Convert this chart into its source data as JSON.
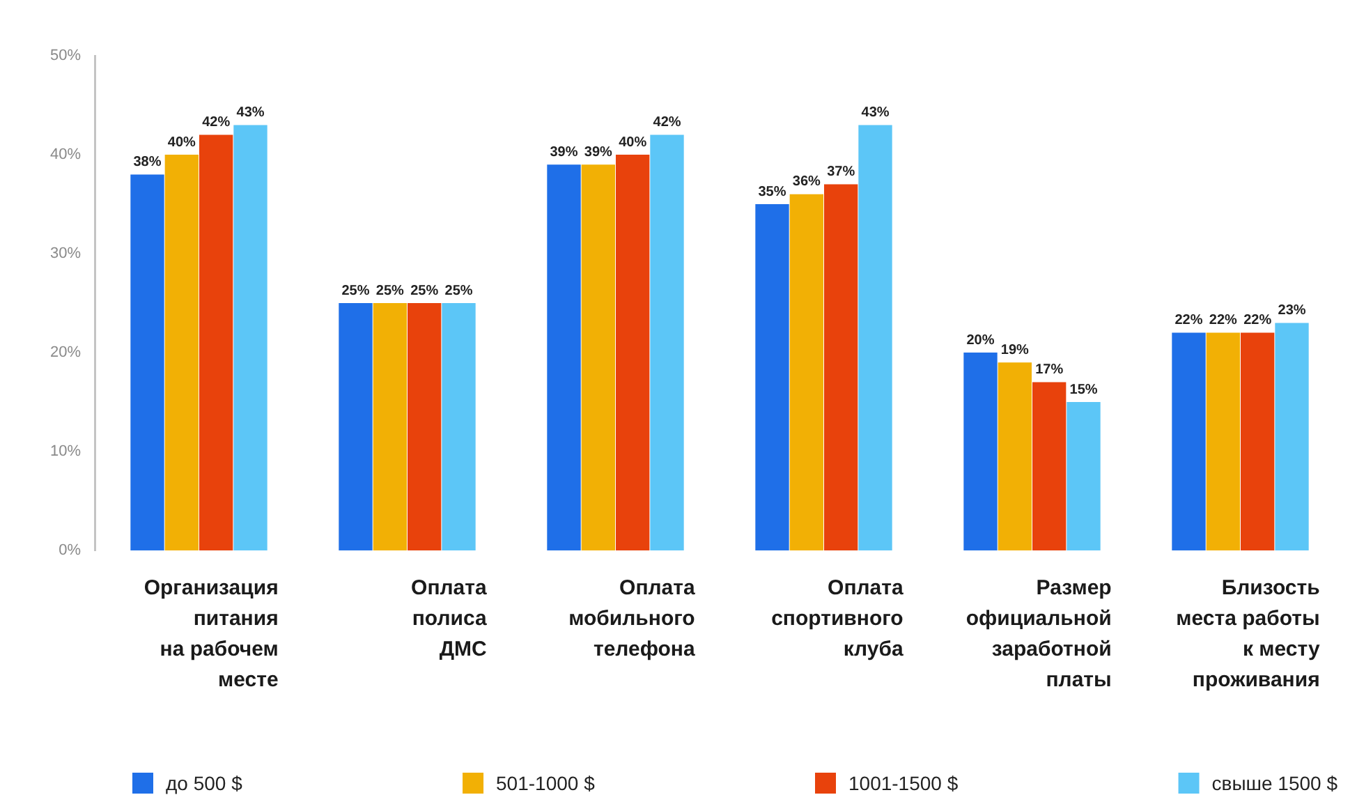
{
  "chart_data": {
    "type": "bar",
    "categories": [
      "Организация\nпитания\nна рабочем\nместе",
      "Оплата\nполиса\nДМС",
      "Оплата\nмобильного\nтелефона",
      "Оплата\nспортивного\nклуба",
      "Размер\nофициальной\nзаработной\nплаты",
      "Близость\nместа работы\nк месту\nпроживания"
    ],
    "series": [
      {
        "name": "до 500 $",
        "color": "#1f6fe8",
        "values": [
          38,
          25,
          39,
          35,
          20,
          22
        ],
        "value_labels": [
          "38%",
          "25%",
          "39%",
          "35%",
          "20%",
          "22%"
        ]
      },
      {
        "name": "501-1000 $",
        "color": "#f2b005",
        "values": [
          40,
          25,
          39,
          36,
          19,
          22
        ],
        "value_labels": [
          "40%",
          "25%",
          "39%",
          "36%",
          "19%",
          "22%"
        ]
      },
      {
        "name": "1001-1500 $",
        "color": "#e8420c",
        "values": [
          42,
          25,
          40,
          37,
          17,
          22
        ],
        "value_labels": [
          "42%",
          "25%",
          "40%",
          "37%",
          "17%",
          "22%"
        ]
      },
      {
        "name": "свыше 1500 $",
        "color": "#5cc6f7",
        "values": [
          43,
          25,
          42,
          43,
          15,
          23
        ],
        "value_labels": [
          "43%",
          "25%",
          "42%",
          "43%",
          "15%",
          "23%"
        ]
      }
    ],
    "ylim": [
      0,
      50
    ],
    "yticks": [
      {
        "value": 0,
        "label": "0%"
      },
      {
        "value": 10,
        "label": "10%"
      },
      {
        "value": 20,
        "label": "20%"
      },
      {
        "value": 30,
        "label": "30%"
      },
      {
        "value": 40,
        "label": "40%"
      },
      {
        "value": 50,
        "label": "50%"
      }
    ],
    "grid": false,
    "legend": "bottom"
  }
}
